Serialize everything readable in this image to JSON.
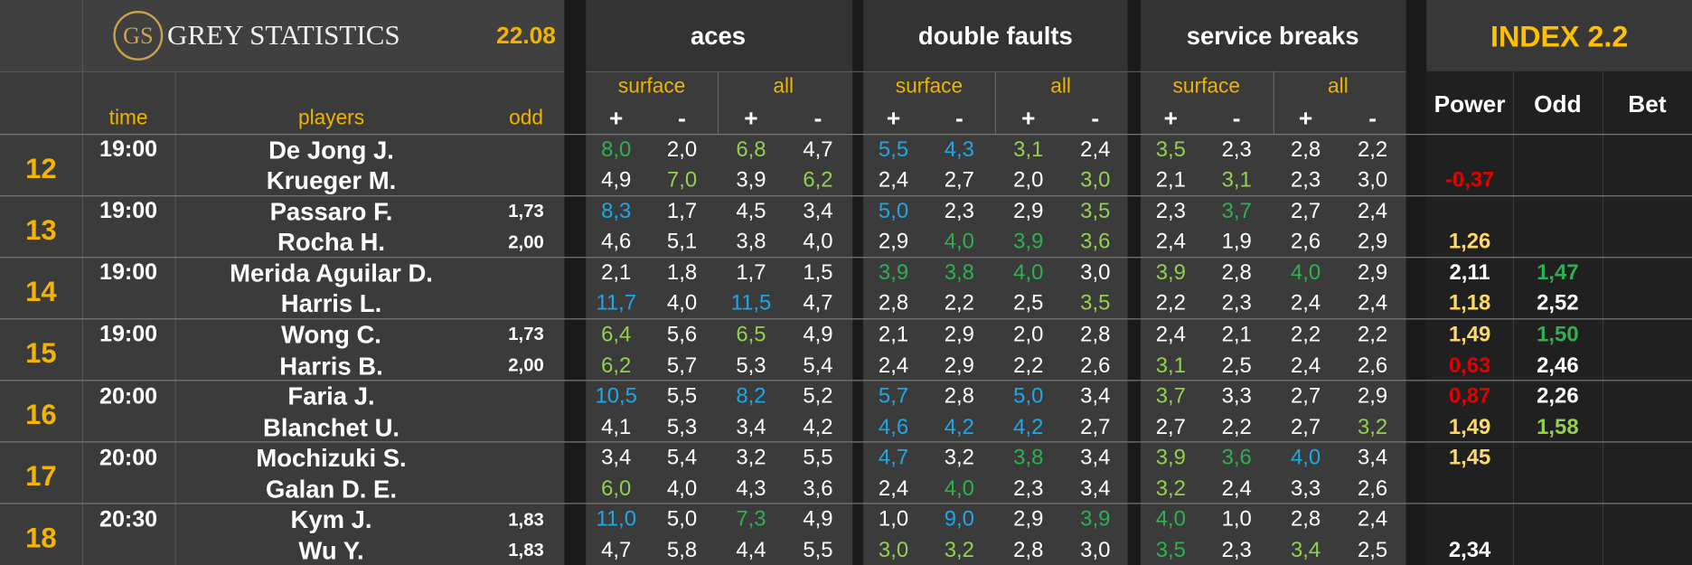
{
  "header": {
    "logo": "GS",
    "brand": "GREY STATISTICS",
    "date": "22.08",
    "groups": [
      "aces",
      "double faults",
      "service breaks"
    ],
    "index": "INDEX 2.2",
    "subgroups": [
      "surface",
      "all"
    ],
    "signs": [
      "+",
      "-"
    ],
    "columns": {
      "time": "time",
      "players": "players",
      "odd": "odd",
      "power": "Power",
      "index_odd": "Odd",
      "bet": "Bet"
    }
  },
  "matches": [
    {
      "no": "12",
      "time": "19:00",
      "players": [
        {
          "name": "De Jong J.",
          "stats": [
            {
              "text": "8,0",
              "color": "#2eb04f"
            },
            {
              "text": "2,0",
              "color": "#ffffff"
            },
            {
              "text": "6,8",
              "color": "#92d050"
            },
            {
              "text": "4,7",
              "color": "#ffffff"
            },
            {
              "text": "5,5",
              "color": "#1ea7e8"
            },
            {
              "text": "4,3",
              "color": "#1ea7e8"
            },
            {
              "text": "3,1",
              "color": "#92d050"
            },
            {
              "text": "2,4",
              "color": "#ffffff"
            },
            {
              "text": "3,5",
              "color": "#92d050"
            },
            {
              "text": "2,3",
              "color": "#ffffff"
            },
            {
              "text": "2,8",
              "color": "#ffffff"
            },
            {
              "text": "2,2",
              "color": "#ffffff"
            }
          ]
        },
        {
          "name": "Krueger M.",
          "stats": [
            {
              "text": "4,9",
              "color": "#ffffff"
            },
            {
              "text": "7,0",
              "color": "#92d050"
            },
            {
              "text": "3,9",
              "color": "#ffffff"
            },
            {
              "text": "6,2",
              "color": "#92d050"
            },
            {
              "text": "2,4",
              "color": "#ffffff"
            },
            {
              "text": "2,7",
              "color": "#ffffff"
            },
            {
              "text": "2,0",
              "color": "#ffffff"
            },
            {
              "text": "3,0",
              "color": "#92d050"
            },
            {
              "text": "2,1",
              "color": "#ffffff"
            },
            {
              "text": "3,1",
              "color": "#92d050"
            },
            {
              "text": "2,3",
              "color": "#ffffff"
            },
            {
              "text": "3,0",
              "color": "#ffffff"
            }
          ],
          "power": {
            "text": "-0,37",
            "color": "#e00000"
          }
        }
      ]
    },
    {
      "no": "13",
      "time": "19:00",
      "players": [
        {
          "name": "Passaro F.",
          "odd": "1,73",
          "stats": [
            {
              "text": "8,3",
              "color": "#1ea7e8"
            },
            {
              "text": "1,7",
              "color": "#ffffff"
            },
            {
              "text": "4,5",
              "color": "#ffffff"
            },
            {
              "text": "3,4",
              "color": "#ffffff"
            },
            {
              "text": "5,0",
              "color": "#1ea7e8"
            },
            {
              "text": "2,3",
              "color": "#ffffff"
            },
            {
              "text": "2,9",
              "color": "#ffffff"
            },
            {
              "text": "3,5",
              "color": "#92d050"
            },
            {
              "text": "2,3",
              "color": "#ffffff"
            },
            {
              "text": "3,7",
              "color": "#2eb04f"
            },
            {
              "text": "2,7",
              "color": "#ffffff"
            },
            {
              "text": "2,4",
              "color": "#ffffff"
            }
          ]
        },
        {
          "name": "Rocha H.",
          "odd": "2,00",
          "stats": [
            {
              "text": "4,6",
              "color": "#ffffff"
            },
            {
              "text": "5,1",
              "color": "#ffffff"
            },
            {
              "text": "3,8",
              "color": "#ffffff"
            },
            {
              "text": "4,0",
              "color": "#ffffff"
            },
            {
              "text": "2,9",
              "color": "#ffffff"
            },
            {
              "text": "4,0",
              "color": "#2eb04f"
            },
            {
              "text": "3,9",
              "color": "#2eb04f"
            },
            {
              "text": "3,6",
              "color": "#92d050"
            },
            {
              "text": "2,4",
              "color": "#ffffff"
            },
            {
              "text": "1,9",
              "color": "#ffffff"
            },
            {
              "text": "2,6",
              "color": "#ffffff"
            },
            {
              "text": "2,9",
              "color": "#ffffff"
            }
          ],
          "power": {
            "text": "1,26",
            "color": "#ffd966"
          }
        }
      ]
    },
    {
      "no": "14",
      "time": "19:00",
      "players": [
        {
          "name": "Merida Aguilar D.",
          "stats": [
            {
              "text": "2,1",
              "color": "#ffffff"
            },
            {
              "text": "1,8",
              "color": "#ffffff"
            },
            {
              "text": "1,7",
              "color": "#ffffff"
            },
            {
              "text": "1,5",
              "color": "#ffffff"
            },
            {
              "text": "3,9",
              "color": "#2eb04f"
            },
            {
              "text": "3,8",
              "color": "#2eb04f"
            },
            {
              "text": "4,0",
              "color": "#2eb04f"
            },
            {
              "text": "3,0",
              "color": "#ffffff"
            },
            {
              "text": "3,9",
              "color": "#92d050"
            },
            {
              "text": "2,8",
              "color": "#ffffff"
            },
            {
              "text": "4,0",
              "color": "#2eb04f"
            },
            {
              "text": "2,9",
              "color": "#ffffff"
            }
          ],
          "power": {
            "text": "2,11",
            "color": "#ffffff"
          },
          "index_odd": {
            "text": "1,47",
            "color": "#2eb04f"
          }
        },
        {
          "name": "Harris L.",
          "stats": [
            {
              "text": "11,7",
              "color": "#1ea7e8"
            },
            {
              "text": "4,0",
              "color": "#ffffff"
            },
            {
              "text": "11,5",
              "color": "#1ea7e8"
            },
            {
              "text": "4,7",
              "color": "#ffffff"
            },
            {
              "text": "2,8",
              "color": "#ffffff"
            },
            {
              "text": "2,2",
              "color": "#ffffff"
            },
            {
              "text": "2,5",
              "color": "#ffffff"
            },
            {
              "text": "3,5",
              "color": "#92d050"
            },
            {
              "text": "2,2",
              "color": "#ffffff"
            },
            {
              "text": "2,3",
              "color": "#ffffff"
            },
            {
              "text": "2,4",
              "color": "#ffffff"
            },
            {
              "text": "2,4",
              "color": "#ffffff"
            }
          ],
          "power": {
            "text": "1,18",
            "color": "#ffd966"
          },
          "index_odd": {
            "text": "2,52",
            "color": "#ffffff"
          }
        }
      ]
    },
    {
      "no": "15",
      "time": "19:00",
      "players": [
        {
          "name": "Wong C.",
          "odd": "1,73",
          "stats": [
            {
              "text": "6,4",
              "color": "#92d050"
            },
            {
              "text": "5,6",
              "color": "#ffffff"
            },
            {
              "text": "6,5",
              "color": "#92d050"
            },
            {
              "text": "4,9",
              "color": "#ffffff"
            },
            {
              "text": "2,1",
              "color": "#ffffff"
            },
            {
              "text": "2,9",
              "color": "#ffffff"
            },
            {
              "text": "2,0",
              "color": "#ffffff"
            },
            {
              "text": "2,8",
              "color": "#ffffff"
            },
            {
              "text": "2,4",
              "color": "#ffffff"
            },
            {
              "text": "2,1",
              "color": "#ffffff"
            },
            {
              "text": "2,2",
              "color": "#ffffff"
            },
            {
              "text": "2,2",
              "color": "#ffffff"
            }
          ],
          "power": {
            "text": "1,49",
            "color": "#ffd966"
          },
          "index_odd": {
            "text": "1,50",
            "color": "#2eb04f"
          }
        },
        {
          "name": "Harris B.",
          "odd": "2,00",
          "stats": [
            {
              "text": "6,2",
              "color": "#92d050"
            },
            {
              "text": "5,7",
              "color": "#ffffff"
            },
            {
              "text": "5,3",
              "color": "#ffffff"
            },
            {
              "text": "5,4",
              "color": "#ffffff"
            },
            {
              "text": "2,4",
              "color": "#ffffff"
            },
            {
              "text": "2,9",
              "color": "#ffffff"
            },
            {
              "text": "2,2",
              "color": "#ffffff"
            },
            {
              "text": "2,6",
              "color": "#ffffff"
            },
            {
              "text": "3,1",
              "color": "#92d050"
            },
            {
              "text": "2,5",
              "color": "#ffffff"
            },
            {
              "text": "2,4",
              "color": "#ffffff"
            },
            {
              "text": "2,6",
              "color": "#ffffff"
            }
          ],
          "power": {
            "text": "0,63",
            "color": "#e00000"
          },
          "index_odd": {
            "text": "2,46",
            "color": "#ffffff"
          }
        }
      ]
    },
    {
      "no": "16",
      "time": "20:00",
      "players": [
        {
          "name": "Faria J.",
          "stats": [
            {
              "text": "10,5",
              "color": "#1ea7e8"
            },
            {
              "text": "5,5",
              "color": "#ffffff"
            },
            {
              "text": "8,2",
              "color": "#1ea7e8"
            },
            {
              "text": "5,2",
              "color": "#ffffff"
            },
            {
              "text": "5,7",
              "color": "#1ea7e8"
            },
            {
              "text": "2,8",
              "color": "#ffffff"
            },
            {
              "text": "5,0",
              "color": "#1ea7e8"
            },
            {
              "text": "3,4",
              "color": "#ffffff"
            },
            {
              "text": "3,7",
              "color": "#92d050"
            },
            {
              "text": "3,3",
              "color": "#ffffff"
            },
            {
              "text": "2,7",
              "color": "#ffffff"
            },
            {
              "text": "2,9",
              "color": "#ffffff"
            }
          ],
          "power": {
            "text": "0,87",
            "color": "#e00000"
          },
          "index_odd": {
            "text": "2,26",
            "color": "#ffffff"
          }
        },
        {
          "name": "Blanchet U.",
          "stats": [
            {
              "text": "4,1",
              "color": "#ffffff"
            },
            {
              "text": "5,3",
              "color": "#ffffff"
            },
            {
              "text": "3,4",
              "color": "#ffffff"
            },
            {
              "text": "4,2",
              "color": "#ffffff"
            },
            {
              "text": "4,6",
              "color": "#1ea7e8"
            },
            {
              "text": "4,2",
              "color": "#1ea7e8"
            },
            {
              "text": "4,2",
              "color": "#1ea7e8"
            },
            {
              "text": "2,7",
              "color": "#ffffff"
            },
            {
              "text": "2,7",
              "color": "#ffffff"
            },
            {
              "text": "2,2",
              "color": "#ffffff"
            },
            {
              "text": "2,7",
              "color": "#ffffff"
            },
            {
              "text": "3,2",
              "color": "#92d050"
            }
          ],
          "power": {
            "text": "1,49",
            "color": "#ffd966"
          },
          "index_odd": {
            "text": "1,58",
            "color": "#92d050"
          }
        }
      ]
    },
    {
      "no": "17",
      "time": "20:00",
      "players": [
        {
          "name": "Mochizuki S.",
          "stats": [
            {
              "text": "3,4",
              "color": "#ffffff"
            },
            {
              "text": "5,4",
              "color": "#ffffff"
            },
            {
              "text": "3,2",
              "color": "#ffffff"
            },
            {
              "text": "5,5",
              "color": "#ffffff"
            },
            {
              "text": "4,7",
              "color": "#1ea7e8"
            },
            {
              "text": "3,2",
              "color": "#ffffff"
            },
            {
              "text": "3,8",
              "color": "#2eb04f"
            },
            {
              "text": "3,4",
              "color": "#ffffff"
            },
            {
              "text": "3,9",
              "color": "#92d050"
            },
            {
              "text": "3,6",
              "color": "#2eb04f"
            },
            {
              "text": "4,0",
              "color": "#1ea7e8"
            },
            {
              "text": "3,4",
              "color": "#ffffff"
            }
          ],
          "power": {
            "text": "1,45",
            "color": "#ffd966"
          }
        },
        {
          "name": "Galan D. E.",
          "stats": [
            {
              "text": "6,0",
              "color": "#92d050"
            },
            {
              "text": "4,0",
              "color": "#ffffff"
            },
            {
              "text": "4,3",
              "color": "#ffffff"
            },
            {
              "text": "3,6",
              "color": "#ffffff"
            },
            {
              "text": "2,4",
              "color": "#ffffff"
            },
            {
              "text": "4,0",
              "color": "#2eb04f"
            },
            {
              "text": "2,3",
              "color": "#ffffff"
            },
            {
              "text": "3,4",
              "color": "#ffffff"
            },
            {
              "text": "3,2",
              "color": "#92d050"
            },
            {
              "text": "2,4",
              "color": "#ffffff"
            },
            {
              "text": "3,3",
              "color": "#ffffff"
            },
            {
              "text": "2,6",
              "color": "#ffffff"
            }
          ]
        }
      ]
    },
    {
      "no": "18",
      "time": "20:30",
      "players": [
        {
          "name": "Kym J.",
          "odd": "1,83",
          "stats": [
            {
              "text": "11,0",
              "color": "#1ea7e8"
            },
            {
              "text": "5,0",
              "color": "#ffffff"
            },
            {
              "text": "7,3",
              "color": "#2eb04f"
            },
            {
              "text": "4,9",
              "color": "#ffffff"
            },
            {
              "text": "1,0",
              "color": "#ffffff"
            },
            {
              "text": "9,0",
              "color": "#1ea7e8"
            },
            {
              "text": "2,9",
              "color": "#ffffff"
            },
            {
              "text": "3,9",
              "color": "#2eb04f"
            },
            {
              "text": "4,0",
              "color": "#2eb04f"
            },
            {
              "text": "1,0",
              "color": "#ffffff"
            },
            {
              "text": "2,8",
              "color": "#ffffff"
            },
            {
              "text": "2,4",
              "color": "#ffffff"
            }
          ]
        },
        {
          "name": "Wu Y.",
          "odd": "1,83",
          "stats": [
            {
              "text": "4,7",
              "color": "#ffffff"
            },
            {
              "text": "5,8",
              "color": "#ffffff"
            },
            {
              "text": "4,4",
              "color": "#ffffff"
            },
            {
              "text": "5,5",
              "color": "#ffffff"
            },
            {
              "text": "3,0",
              "color": "#92d050"
            },
            {
              "text": "3,2",
              "color": "#92d050"
            },
            {
              "text": "2,8",
              "color": "#ffffff"
            },
            {
              "text": "3,0",
              "color": "#ffffff"
            },
            {
              "text": "3,5",
              "color": "#2eb04f"
            },
            {
              "text": "2,3",
              "color": "#ffffff"
            },
            {
              "text": "3,4",
              "color": "#92d050"
            },
            {
              "text": "2,5",
              "color": "#ffffff"
            }
          ],
          "power": {
            "text": "2,34",
            "color": "#ffffff"
          }
        }
      ]
    }
  ]
}
